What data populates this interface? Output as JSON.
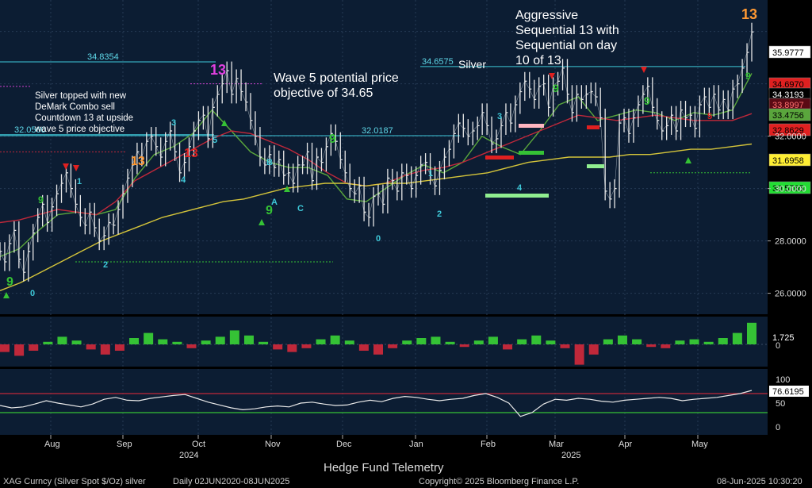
{
  "chart_data": {
    "type": "line",
    "title": "Silver",
    "instrument": "XAG Curncy (Silver Spot $/Oz) silver",
    "range_label": "Daily 02JUN2020-08JUN2025",
    "copyright": "Copyright© 2025 Bloomberg Finance L.P.",
    "timestamp": "08-Jun-2025 10:30:20",
    "branding": "Hedge Fund Telemetry",
    "x_months": [
      "Aug",
      "Sep",
      "Oct",
      "Nov",
      "Dec",
      "Jan",
      "Feb",
      "Mar",
      "Apr",
      "May"
    ],
    "x_years": [
      "2024",
      "2025"
    ],
    "price_axis": {
      "ylim": [
        25.2,
        37.2
      ],
      "ticks": [
        "26.0000",
        "28.0000",
        "30.0000",
        "32.0000"
      ]
    },
    "price_series": {
      "name": "Silver spot close",
      "values": [
        27.6,
        27.2,
        27.9,
        28.4,
        27.3,
        26.8,
        27.6,
        28.3,
        28.9,
        29.4,
        28.7,
        29.3,
        29.8,
        30.2,
        30.6,
        30.0,
        29.4,
        28.9,
        28.6,
        29.1,
        28.5,
        28.0,
        28.2,
        28.7,
        28.6,
        29.2,
        29.8,
        30.4,
        30.9,
        31.4,
        31.2,
        31.8,
        32.0,
        31.6,
        31.2,
        31.8,
        32.2,
        31.4,
        30.6,
        31.0,
        31.6,
        32.2,
        32.6,
        32.8,
        31.9,
        33.1,
        33.6,
        34.0,
        34.5,
        33.6,
        34.2,
        33.7,
        33.3,
        32.6,
        32.0,
        31.2,
        30.9,
        31.3,
        30.8,
        31.1,
        30.5,
        30.6,
        30.2,
        30.9,
        30.9,
        31.4,
        30.3,
        31.2,
        31.0,
        31.6,
        32.1,
        31.8,
        31.1,
        30.6,
        30.0,
        29.8,
        30.1,
        29.1,
        28.9,
        29.7,
        29.8,
        29.4,
        30.4,
        30.3,
        29.9,
        30.6,
        30.5,
        30.0,
        30.5,
        30.9,
        31.0,
        30.5,
        30.1,
        30.7,
        31.2,
        31.5,
        32.1,
        32.5,
        32.3,
        32.0,
        32.2,
        32.4,
        32.9,
        32.4,
        31.7,
        31.9,
        32.4,
        32.9,
        32.5,
        33.2,
        33.7,
        34.1,
        33.8,
        33.4,
        33.9,
        34.0,
        33.1,
        33.9,
        34.1,
        34.6,
        33.6,
        32.9,
        33.6,
        33.4,
        33.6,
        33.7,
        33.5,
        32.7,
        29.9,
        29.6,
        30.0,
        32.5,
        32.7,
        32.1,
        32.7,
        33.2,
        33.6,
        33.9,
        33.1,
        32.6,
        32.2,
        32.4,
        32.8,
        32.2,
        33.0,
        32.7,
        32.8,
        32.3,
        33.2,
        33.5,
        33.1,
        33.6,
        33.0,
        33.4,
        33.0,
        33.8,
        34.0,
        34.6,
        35.2,
        35.98
      ]
    },
    "ma_series": [
      {
        "name": "Green MA",
        "color": "#5aa63c",
        "values": [
          27.4,
          27.7,
          28.4,
          29.0,
          29.1,
          29.0,
          29.2,
          30.4,
          31.3,
          31.6,
          32.1,
          33.0,
          32.2,
          31.4,
          31.0,
          30.8,
          30.8,
          30.5,
          29.6,
          29.5,
          30.0,
          30.5,
          30.9,
          30.6,
          31.0,
          32.0,
          31.6,
          31.3,
          32.2,
          33.2,
          33.5,
          32.6,
          32.8,
          33.0,
          32.9,
          32.6,
          32.9,
          32.8,
          33.0,
          34.4
        ]
      },
      {
        "name": "Red MA",
        "color": "#c0283a",
        "values": [
          28.7,
          28.8,
          29.0,
          29.2,
          29.1,
          29.0,
          29.5,
          30.3,
          30.7,
          31.1,
          31.5,
          31.9,
          32.2,
          32.1,
          31.8,
          31.5,
          31.1,
          30.6,
          30.2,
          30.1,
          30.2,
          30.5,
          30.7,
          30.8,
          31.0,
          31.3,
          31.6,
          31.9,
          32.2,
          32.5,
          32.8,
          32.7,
          32.6,
          32.7,
          32.8,
          32.7,
          32.6,
          32.6,
          32.6,
          32.86
        ]
      },
      {
        "name": "Yellow MA",
        "color": "#d4c43a",
        "values": [
          26.1,
          26.4,
          26.8,
          27.2,
          27.6,
          28.0,
          28.3,
          28.6,
          28.9,
          29.1,
          29.3,
          29.5,
          29.6,
          29.8,
          30.0,
          30.1,
          30.2,
          30.2,
          30.1,
          30.2,
          30.2,
          30.3,
          30.4,
          30.5,
          30.6,
          30.8,
          31.0,
          31.1,
          31.2,
          31.2,
          31.2,
          31.3,
          31.3,
          31.4,
          31.5,
          31.5,
          31.6,
          31.7
        ]
      }
    ],
    "price_labels": [
      {
        "text": "35.9777",
        "value": 35.9777,
        "bg": "#ffffff",
        "fg": "#000000"
      },
      {
        "text": "34.6970",
        "value": 34.697,
        "bg": "#e02020",
        "fg": "#000000"
      },
      {
        "text": "34.3193",
        "value": 34.3193,
        "bg": "#000000",
        "fg": "#ffffff"
      },
      {
        "text": "33.8997",
        "value": 33.8997,
        "bg": "#5a0a14",
        "fg": "#ff7070"
      },
      {
        "text": "33.4756",
        "value": 33.4756,
        "bg": "#5aa63c",
        "fg": "#000000"
      },
      {
        "text": "32.8629",
        "value": 32.8629,
        "bg": "#e02020",
        "fg": "#000000"
      },
      {
        "text": "31.6958",
        "value": 31.6958,
        "bg": "#ffee33",
        "fg": "#000000"
      },
      {
        "text": "30.5765",
        "value": 30.5765,
        "bg": "#22dd33",
        "fg": "#000000"
      }
    ],
    "resistance_lines": [
      {
        "label": "34.8354",
        "value": 34.8354
      },
      {
        "label": "34.6575",
        "value": 34.6575
      },
      {
        "label": "32.0560",
        "value": 32.056
      },
      {
        "label": "32.0187",
        "value": 32.0187
      }
    ],
    "annotations": [
      "Aggressive",
      "Sequential 13 with",
      "Sequential on day",
      "10 of 13",
      "Wave 5 potential price",
      "objective of 34.65",
      "Silver topped with new",
      "DeMark Combo sell",
      "Countdown 13 at upside",
      "wave 5 price objective"
    ],
    "count_labels": [
      "13",
      "13",
      "13",
      "13",
      "13",
      "9",
      "9",
      "9",
      "9",
      "9",
      "9",
      "9",
      "9",
      "9",
      "0",
      "0",
      "1",
      "1",
      "2",
      "2",
      "3",
      "3",
      "4",
      "4",
      "5",
      "5",
      "A",
      "B",
      "C"
    ],
    "histogram": {
      "name": "Momentum histogram",
      "label": "1.725",
      "ticks": [
        "0"
      ],
      "values": [
        -0.6,
        -0.9,
        -0.5,
        0.2,
        0.6,
        0.3,
        -0.4,
        -0.8,
        -0.5,
        0.5,
        0.9,
        0.4,
        0.2,
        -0.3,
        0.3,
        0.6,
        1.1,
        0.7,
        0.2,
        -0.4,
        -0.6,
        -0.3,
        0.4,
        0.7,
        0.3,
        -0.5,
        -0.8,
        -0.3,
        0.3,
        0.5,
        0.6,
        0.2,
        -0.2,
        0.3,
        0.6,
        -0.4,
        0.4,
        0.7,
        0.3,
        -0.3,
        -1.6,
        -0.8,
        0.4,
        0.7,
        0.4,
        -0.2,
        -0.3,
        0.3,
        0.4,
        0.2,
        0.5,
        0.9,
        1.7
      ]
    },
    "oscillator": {
      "name": "RSI",
      "label": "76.6195",
      "ticks": [
        "100",
        "50",
        "0"
      ],
      "ylim": [
        0,
        100
      ],
      "levels": [
        70,
        30
      ],
      "values": [
        45,
        40,
        42,
        48,
        55,
        50,
        46,
        42,
        48,
        58,
        62,
        56,
        55,
        60,
        63,
        66,
        68,
        60,
        52,
        46,
        40,
        36,
        38,
        42,
        44,
        42,
        50,
        52,
        48,
        45,
        46,
        52,
        56,
        53,
        60,
        64,
        62,
        58,
        55,
        58,
        60,
        66,
        70,
        62,
        50,
        22,
        30,
        48,
        58,
        56,
        60,
        58,
        54,
        52,
        56,
        58,
        60,
        62,
        60,
        55,
        58,
        60,
        62,
        66,
        70,
        76.6
      ]
    }
  }
}
